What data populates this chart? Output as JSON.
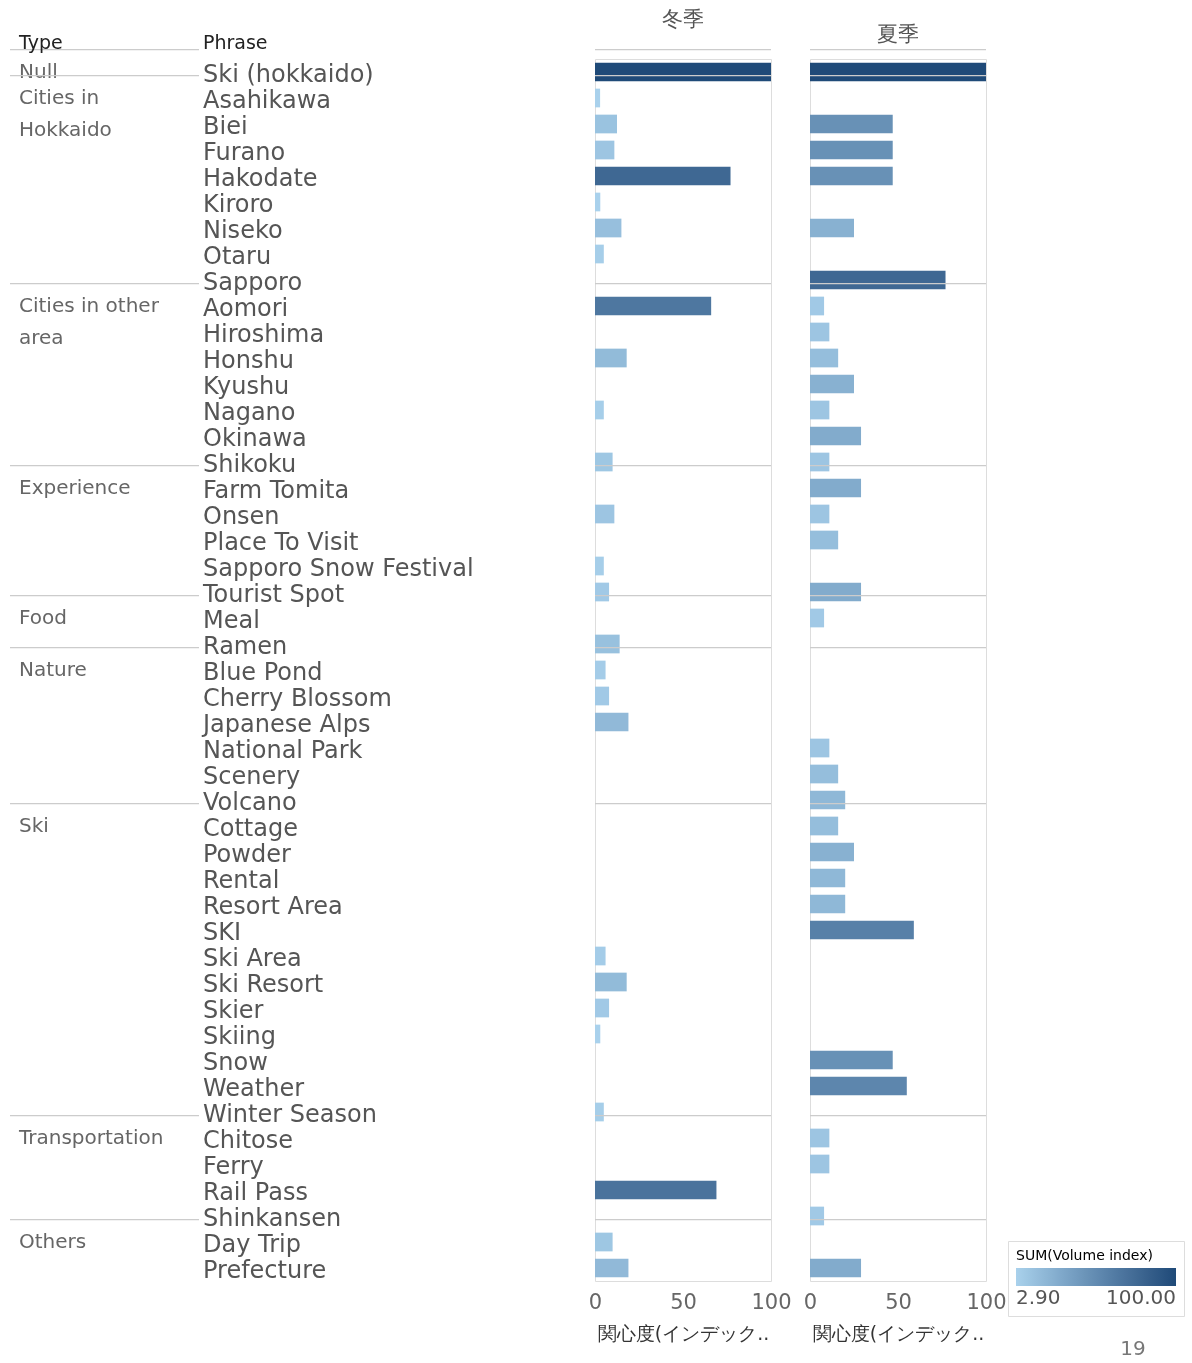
{
  "chart_data": [
    {
      "type": "bar",
      "orientation": "horizontal",
      "title": "冬季",
      "ylabel": "Phrase",
      "xlabel": "関心度(インデック..",
      "xlim": [
        0,
        100
      ],
      "xticks": [
        0,
        50,
        100
      ],
      "categories": [
        "Ski (hokkaido)",
        "Asahikawa",
        "Biei",
        "Furano",
        "Hakodate",
        "Kiroro",
        "Niseko",
        "Otaru",
        "Sapporo",
        "Aomori",
        "Hiroshima",
        "Honshu",
        "Kyushu",
        "Nagano",
        "Okinawa",
        "Shikoku",
        "Farm Tomita",
        "Onsen",
        "Place To Visit",
        "Sapporo Snow Festival",
        "Tourist Spot",
        "Meal",
        "Ramen",
        "Blue Pond",
        "Cherry Blossom",
        "Japanese Alps",
        "National Park",
        "Scenery",
        "Volcano",
        "Cottage",
        "Powder",
        "Rental",
        "Resort Area",
        "SKI",
        "Ski Area",
        "Ski Resort",
        "Skier",
        "Skiing",
        "Snow",
        "Weather",
        "Winter Season",
        "Chitose",
        "Ferry",
        "Rail Pass",
        "Shinkansen",
        "Day Trip",
        "Prefecture"
      ],
      "y2_categories": [
        "Null",
        "Cities in Hokkaido",
        null,
        null,
        null,
        null,
        null,
        null,
        null,
        "Cities in other area",
        null,
        null,
        null,
        null,
        null,
        null,
        "Experience",
        null,
        null,
        null,
        null,
        "Food",
        null,
        "Nature",
        null,
        null,
        null,
        null,
        null,
        "Ski",
        null,
        null,
        null,
        null,
        null,
        null,
        null,
        null,
        null,
        null,
        null,
        "Transportation",
        null,
        null,
        null,
        "Others",
        null
      ],
      "values": [
        100,
        2.9,
        12.5,
        11,
        77,
        3,
        15,
        5,
        null,
        66,
        null,
        18,
        null,
        5,
        null,
        10,
        null,
        11,
        null,
        5,
        8,
        null,
        14,
        6,
        8,
        19,
        null,
        null,
        null,
        null,
        null,
        null,
        null,
        null,
        6,
        18,
        8,
        3,
        null,
        null,
        5,
        null,
        null,
        69,
        null,
        10,
        19
      ],
      "grid": "y",
      "annotations": [
        "Type"
      ]
    },
    {
      "type": "bar",
      "orientation": "horizontal",
      "title": "夏季",
      "xlabel": "関心度(インデック..",
      "xlim": [
        0,
        100
      ],
      "xticks": [
        0,
        50,
        100
      ],
      "tick_labels": "x",
      "grid": "y",
      "clabel": "SUM(Volume index)",
      "clim": [
        2.9,
        100
      ],
      "cticks": [
        {
          "value": 2.9,
          "label": "2.90"
        },
        {
          "value": 100,
          "label": "100.00"
        }
      ],
      "categories": [
        "Ski (hokkaido)",
        "Asahikawa",
        "Biei",
        "Furano",
        "Hakodate",
        "Kiroro",
        "Niseko",
        "Otaru",
        "Sapporo",
        "Aomori",
        "Hiroshima",
        "Honshu",
        "Kyushu",
        "Nagano",
        "Okinawa",
        "Shikoku",
        "Farm Tomita",
        "Onsen",
        "Place To Visit",
        "Sapporo Snow Festival",
        "Tourist Spot",
        "Meal",
        "Ramen",
        "Blue Pond",
        "Cherry Blossom",
        "Japanese Alps",
        "National Park",
        "Scenery",
        "Volcano",
        "Cottage",
        "Powder",
        "Rental",
        "Resort Area",
        "SKI",
        "Ski Area",
        "Ski Resort",
        "Skier",
        "Skiing",
        "Snow",
        "Weather",
        "Winter Season",
        "Chitose",
        "Ferry",
        "Rail Pass",
        "Shinkansen",
        "Day Trip",
        "Prefecture"
      ],
      "values": [
        100,
        null,
        47,
        47,
        47,
        null,
        25,
        null,
        77,
        8,
        11,
        16,
        25,
        11,
        29,
        11,
        29,
        11,
        16,
        null,
        29,
        8,
        null,
        null,
        null,
        null,
        11,
        16,
        20,
        16,
        25,
        20,
        20,
        59,
        null,
        null,
        null,
        null,
        47,
        55,
        null,
        11,
        11,
        null,
        8,
        null,
        29
      ],
      "annotations": [
        "19"
      ]
    }
  ]
}
